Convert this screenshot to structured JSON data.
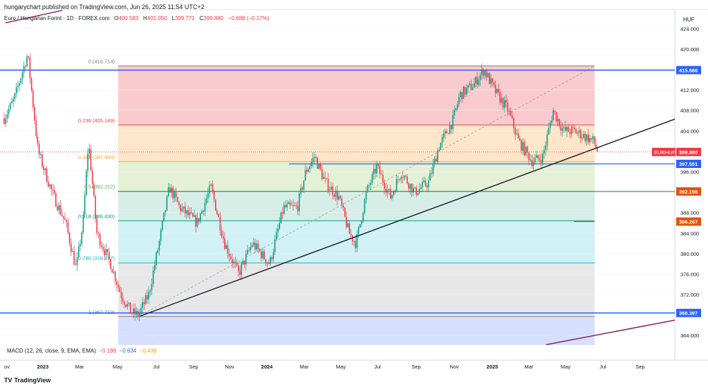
{
  "header": {
    "publisher": "hungarychart published on TradingView.com, Jun 26, 2025 11:54 UTC+2",
    "symbol_name": "Euro / Hungarian Forint · 1D · FOREX.com",
    "open_label": "O",
    "open": "400.583",
    "high_label": "H",
    "high": "401.050",
    "low_label": "L",
    "low": "399.771",
    "close_label": "C",
    "close": "399.880",
    "change": "−0.688 (−0.17%)"
  },
  "indicator": {
    "name": "MACD (12, 26, close, 9, EMA, EMA)",
    "v1": "−0.196",
    "v2": "−0.634",
    "v3": "−0.439"
  },
  "axis": {
    "unit": "HUF"
  },
  "footer": {
    "logo_text": "TradingView",
    "logo_mark": "TV"
  },
  "chart_data": {
    "type": "candlestick",
    "symbol": "EURHUF",
    "y_ticks": [
      "424.000",
      "420.000",
      "416.000",
      "412.000",
      "408.000",
      "404.000",
      "400.000",
      "396.000",
      "392.000",
      "388.000",
      "384.000",
      "380.000",
      "376.000",
      "372.000",
      "368.000",
      "364.000"
    ],
    "x_ticks": [
      "ov",
      "2023",
      "Mar",
      "May",
      "Jul",
      "Sep",
      "Nov",
      "2024",
      "Mar",
      "May",
      "Jul",
      "Sep",
      "Nov",
      "2025",
      "Mar",
      "May",
      "Jul",
      "Sep"
    ],
    "bold_x_ticks": [
      "2023",
      "2024",
      "2025"
    ],
    "fib_levels": [
      {
        "ratio": "0",
        "price": 416.714,
        "label": "0 (416.714)",
        "color": "#787b86",
        "fill": "#f8c5c9"
      },
      {
        "ratio": "0.236",
        "price": 405.149,
        "label": "0.236 (405.149)",
        "color": "#e0434a",
        "fill": "#fde3c3"
      },
      {
        "ratio": "0.382",
        "price": 397.994,
        "label": "0.382 (397.994)",
        "color": "#f5a623",
        "fill": "#e1efd3"
      },
      {
        "ratio": "0.5",
        "price": 392.212,
        "label": "0.5 (392.212)",
        "color": "#4caf50",
        "fill": "#d3ece6"
      },
      {
        "ratio": "0.618",
        "price": 386.43,
        "label": "0.618 (386.430)",
        "color": "#089981",
        "fill": "#ccf0f3"
      },
      {
        "ratio": "0.786",
        "price": 378.197,
        "label": "0.786 (378.197)",
        "color": "#00bcd4",
        "fill": "#e4e4e4"
      },
      {
        "ratio": "1",
        "price": 367.71,
        "label": "1 (367.710)",
        "color": "#787b86",
        "fill": "#d3dcff"
      }
    ],
    "price_tags": [
      {
        "price": 415.886,
        "label": "415.886",
        "color": "#2962ff"
      },
      {
        "price": 399.88,
        "label": "399.880",
        "color": "#f23645"
      },
      {
        "price": 397.551,
        "label": "397.551",
        "color": "#2962ff"
      },
      {
        "price": 392.156,
        "label": "392.156",
        "color": "#e65100"
      },
      {
        "price": 386.267,
        "label": "386.267",
        "color": "#e65100"
      },
      {
        "price": 368.397,
        "label": "368.397",
        "color": "#2962ff"
      }
    ],
    "symbol_tag": "EURHUF",
    "horizontal_lines": [
      {
        "price": 415.886,
        "color": "#2962ff",
        "span": "full"
      },
      {
        "price": 397.551,
        "color": "#2962ff",
        "span": "partial"
      },
      {
        "price": 392.156,
        "color": "#4caf50",
        "span": "fib"
      },
      {
        "price": 386.267,
        "color": "#e65100",
        "span": "short"
      },
      {
        "price": 368.397,
        "color": "#2962ff",
        "span": "full"
      }
    ],
    "trendline": {
      "from": [
        "2023-06",
        367.7
      ],
      "to": [
        "2025-10",
        406.5
      ],
      "color": "#131722"
    },
    "trendline2": {
      "color": "#880e4f"
    },
    "last_close": 399.88,
    "y_range": [
      362,
      425
    ]
  }
}
